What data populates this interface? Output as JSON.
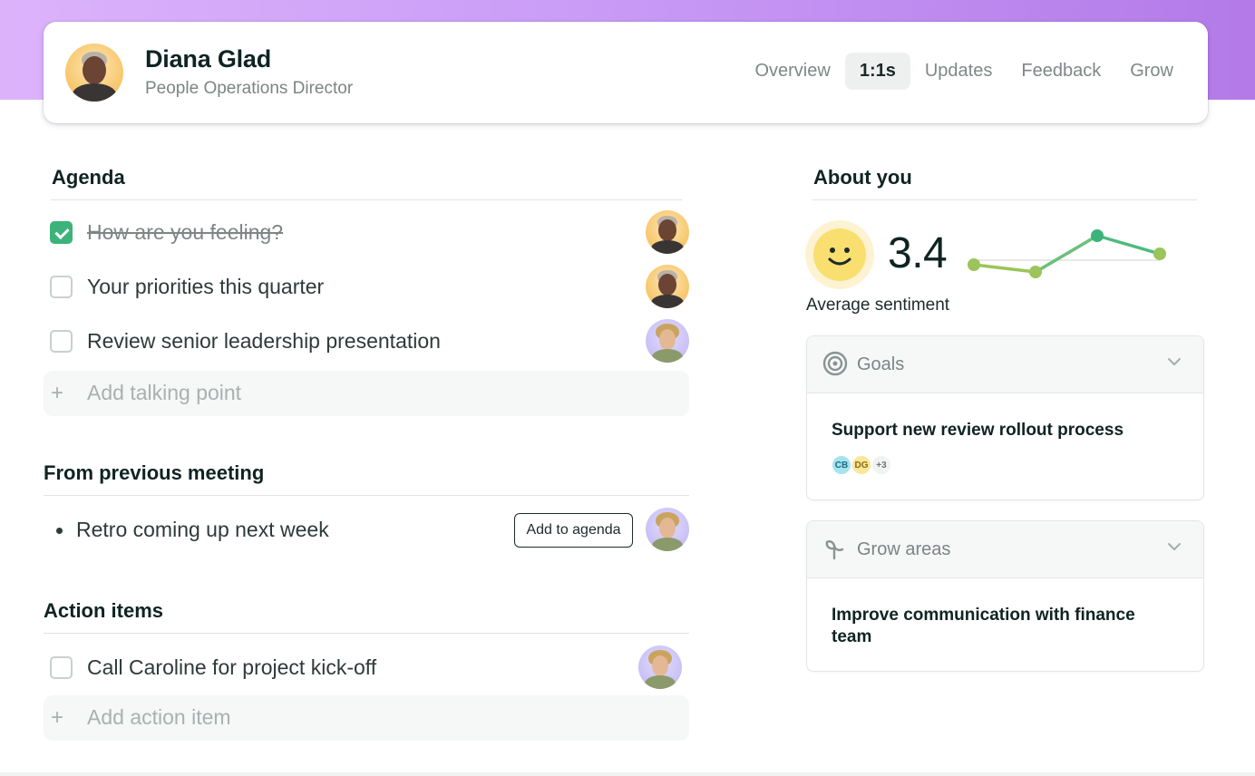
{
  "profile": {
    "name": "Diana Glad",
    "role": "People Operations Director"
  },
  "tabs": [
    {
      "label": "Overview",
      "active": false
    },
    {
      "label": "1:1s",
      "active": true
    },
    {
      "label": "Updates",
      "active": false
    },
    {
      "label": "Feedback",
      "active": false
    },
    {
      "label": "Grow",
      "active": false
    }
  ],
  "agenda": {
    "title": "Agenda",
    "items": [
      {
        "label": "How are you feeling?",
        "checked": true
      },
      {
        "label": "Your priorities this quarter",
        "checked": false
      },
      {
        "label": "Review senior leadership presentation",
        "checked": false
      }
    ],
    "add_placeholder": "Add talking point"
  },
  "previous_meeting": {
    "title": "From previous meeting",
    "items": [
      {
        "label": "Retro coming up next week"
      }
    ],
    "add_button_label": "Add to agenda"
  },
  "action_items": {
    "title": "Action items",
    "items": [
      {
        "label": "Call Caroline for project kick-off",
        "checked": false
      }
    ],
    "add_placeholder": "Add action item"
  },
  "about": {
    "title": "About you",
    "sentiment_value": "3.4",
    "sentiment_label": "Average sentiment",
    "sentiment_trend": [
      3.1,
      2.9,
      3.9,
      3.4
    ],
    "colors": {
      "accent_green": "#3cb37a",
      "line_olive": "#9bc45a",
      "smiley": "#f9df6f"
    }
  },
  "goals": {
    "title": "Goals",
    "item": "Support new review rollout process",
    "chips": [
      {
        "label": "CB",
        "bg": "#a6e3ef",
        "fg": "#1d6e80"
      },
      {
        "label": "DG",
        "bg": "#fbe79a",
        "fg": "#8a6d13"
      }
    ],
    "more_label": "+3"
  },
  "grow": {
    "title": "Grow areas",
    "item_line1": "Improve communication with finance",
    "item_line2": "team"
  }
}
